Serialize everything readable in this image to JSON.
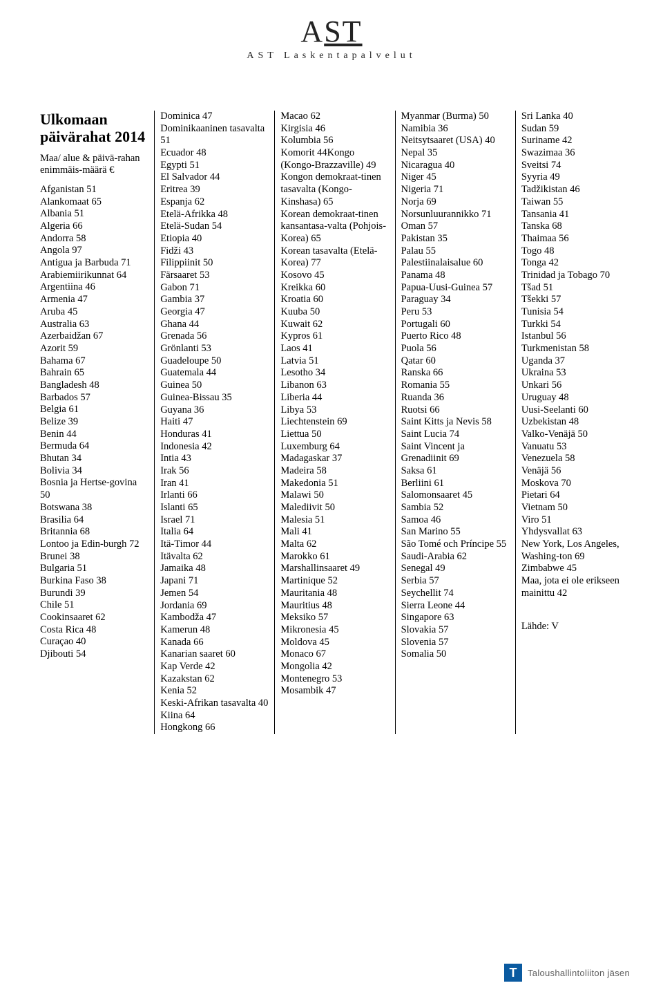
{
  "logo": {
    "top": "AST",
    "sub": "AST Laskentapalvelut"
  },
  "title": "Ulkomaan päivärahat 2014",
  "subtitle": "Maa/ alue & päivä-rahan enimmäis-määrä €",
  "columns": [
    [
      "Afganistan 51",
      "Alankomaat 65",
      "Albania 51",
      "Algeria 66",
      "Andorra 58",
      "Angola 97",
      "Antigua ja Barbuda 71",
      "Arabiemiirikunnat 64",
      "Argentiina 46",
      "Armenia 47",
      "Aruba 45",
      "Australia 63",
      "Azerbaidžan 67",
      "Azorit 59",
      "Bahama 67",
      "Bahrain 65",
      "Bangladesh 48",
      "Barbados 57",
      "Belgia 61",
      "Belize 39",
      "Benin 44",
      "Bermuda 64",
      "Bhutan 34",
      "Bolivia 34",
      "Bosnia ja Hertse-govina 50",
      "Botswana 38",
      "Brasilia 64",
      "Britannia 68",
      "Lontoo ja Edin-burgh 72",
      "Brunei 38",
      "Bulgaria 51",
      "Burkina Faso 38",
      "Burundi 39",
      "Chile 51",
      "Cookinsaaret 62",
      "Costa Rica 48",
      "Curaçao 40",
      "Djibouti 54"
    ],
    [
      "Dominica 47",
      "Dominikaaninen tasavalta 51",
      "Ecuador 48",
      "Egypti 51",
      "El Salvador 44",
      "Eritrea 39",
      "Espanja 62",
      "Etelä-Afrikka 48",
      "Etelä-Sudan 54",
      "Etiopia 40",
      "Fidži 43",
      "Filippiinit 50",
      "Färsaaret 53",
      "Gabon 71",
      "Gambia 37",
      "Georgia 47",
      "Ghana 44",
      "Grenada 56",
      "Grönlanti 53",
      "Guadeloupe 50",
      "Guatemala 44",
      "Guinea 50",
      "Guinea-Bissau 35",
      "Guyana 36",
      "Haiti 47",
      "Honduras 41",
      "Indonesia 42",
      "Intia 43",
      "Irak 56",
      "Iran 41",
      "Irlanti 66",
      "Islanti 65",
      "Israel 71",
      "Italia 64",
      "Itä-Timor 44",
      "Itävalta 62",
      "Jamaika 48",
      "Japani 71",
      "Jemen 54",
      "Jordania 69",
      "Kambodža 47",
      "Kamerun 48",
      "Kanada 66",
      "Kanarian saaret 60",
      "Kap Verde 42",
      "Kazakstan 62",
      "Kenia 52",
      "Keski-Afrikan tasavalta 40",
      "Kiina 64",
      "Hongkong 66"
    ],
    [
      "Macao 62",
      "Kirgisia 46",
      "Kolumbia 56",
      "Komorit 44Kongo (Kongo-Brazzaville) 49",
      "Kongon demokraat-tinen tasavalta (Kongo-Kinshasa) 65",
      "Korean demokraat-tinen kansantasa-valta (Pohjois-Korea) 65",
      "Korean tasavalta (Etelä-Korea) 77",
      "Kosovo 45",
      "Kreikka 60",
      "Kroatia 60",
      "Kuuba 50",
      "Kuwait 62",
      "Kypros 61",
      "Laos 41",
      "Latvia 51",
      "Lesotho 34",
      "Libanon 63",
      "Liberia 44",
      "Libya 53",
      "Liechtenstein 69",
      "Liettua 50",
      "Luxemburg 64",
      "Madagaskar 37",
      "Madeira 58",
      "Makedonia 51",
      "Malawi 50",
      "Malediivit 50",
      "Malesia 51",
      "Mali 41",
      "Malta 62",
      "Marokko 61",
      "Marshallinsaaret 49",
      "Martinique 52",
      "Mauritania 48",
      "Mauritius 48",
      "Meksiko 57",
      "Mikronesia 45",
      "Moldova 45",
      "Monaco 67",
      "Mongolia 42",
      "Montenegro 53",
      "Mosambik 47"
    ],
    [
      "Myanmar (Burma) 50",
      "Namibia 36",
      "Neitsytsaaret (USA) 40",
      "Nepal 35",
      "Nicaragua 40",
      "Niger 45",
      "Nigeria 71",
      "Norja 69",
      "Norsunluurannikko 71",
      "Oman 57",
      "Pakistan 35",
      "Palau 55",
      "Palestiinalaisalue 60",
      "Panama 48",
      "Papua-Uusi-Guinea 57",
      "Paraguay 34",
      "Peru 53",
      "Portugali 60",
      "Puerto Rico 48",
      "Puola 56",
      "Qatar 60",
      "Ranska 66",
      "Romania 55",
      "Ruanda 36",
      "Ruotsi 66",
      "Saint Kitts ja Nevis 58",
      "Saint Lucia 74",
      "Saint Vincent ja Grenadiinit 69",
      "Saksa 61",
      "Berliini 61",
      "Salomonsaaret 45",
      "Sambia 52",
      "Samoa 46",
      "San Marino 55",
      "São Tomé och Príncipe 55",
      "Saudi-Arabia 62",
      "Senegal 49",
      "Serbia 57",
      "Seychellit 74",
      "Sierra Leone 44",
      "Singapore 63",
      "Slovakia 57",
      "Slovenia 57",
      "Somalia 50"
    ],
    [
      "Sri Lanka 40",
      "Sudan 59",
      "Suriname 42",
      "Swazimaa 36",
      "Sveitsi 74",
      "Syyria 49",
      "Tadžikistan 46",
      "Taiwan 55",
      "Tansania 41",
      "Tanska 68",
      "Thaimaa 56",
      "Togo 48",
      "Tonga 42",
      "Trinidad ja Tobago 70",
      "Tšad 51",
      "Tšekki 57",
      "Tunisia 54",
      "Turkki 54",
      "Istanbul 56",
      "Turkmenistan 58",
      "Uganda 37",
      "Ukraina 53",
      "Unkari 56",
      "Uruguay 48",
      "Uusi-Seelanti 60",
      "Uzbekistan 48",
      "Valko-Venäjä 50",
      "Vanuatu 53",
      "Venezuela 58",
      "Venäjä 56",
      "Moskova 70",
      "Pietari 64",
      "Vietnam 50",
      "Viro 51",
      "Yhdysvallat 63",
      "New York, Los Angeles, Washing-ton 69",
      "Zimbabwe 45",
      "Maa, jota ei ole erikseen mainittu 42"
    ]
  ],
  "source": "Lähde: V",
  "footer": {
    "badge": "T",
    "text": "Taloushallintoliiton jäsen"
  }
}
